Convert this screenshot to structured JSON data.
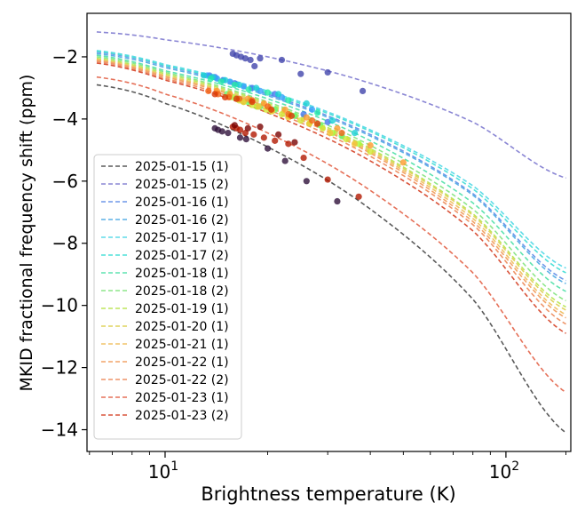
{
  "chart_data": {
    "type": "scatter",
    "title": "",
    "xlabel": "Brightness temperature (K)",
    "ylabel": "MKID fractional frequency shift (ppm)",
    "xscale": "log",
    "xlim": [
      5.9,
      155
    ],
    "ylim": [
      -14.7,
      -0.6
    ],
    "yticks": [
      -14,
      -12,
      -10,
      -8,
      -6,
      -4,
      -2
    ],
    "ytick_labels": [
      "−14",
      "−12",
      "−10",
      "−8",
      "−6",
      "−4",
      "−2"
    ],
    "xticks": [
      10,
      100
    ],
    "xtick_base": "10",
    "xtick_exponents": [
      "1",
      "2"
    ],
    "xminor_ticks": [
      6,
      7,
      8,
      9,
      20,
      30,
      40,
      50,
      60,
      70,
      80,
      90,
      150
    ],
    "legend_position": "lower-left",
    "fit_range": [
      6.3,
      150
    ],
    "series": [
      {
        "name": "2025-01-15 (1)",
        "color": "#30123b",
        "line_color": "#5a5a5a",
        "fit": [
          [
            6.3,
            -2.9
          ],
          [
            10,
            -3.5
          ],
          [
            20,
            -4.9
          ],
          [
            40,
            -6.9
          ],
          [
            80,
            -9.8
          ],
          [
            150,
            -14.1
          ]
        ],
        "points": [
          [
            14.0,
            -4.3
          ],
          [
            14.3,
            -4.35
          ],
          [
            14.7,
            -4.4
          ],
          [
            15.3,
            -4.45
          ],
          [
            16.6,
            -4.6
          ],
          [
            17.3,
            -4.65
          ],
          [
            20.0,
            -4.95
          ],
          [
            22.5,
            -5.35
          ],
          [
            26.0,
            -6.0
          ],
          [
            32.0,
            -6.65
          ]
        ]
      },
      {
        "name": "2025-01-15 (2)",
        "color": "#4145ab",
        "line_color": "#8a86d4",
        "fit": [
          [
            6.3,
            -1.2
          ],
          [
            10,
            -1.45
          ],
          [
            20,
            -2.0
          ],
          [
            40,
            -2.85
          ],
          [
            80,
            -4.1
          ],
          [
            150,
            -5.9
          ]
        ],
        "points": [
          [
            15.8,
            -1.9
          ],
          [
            16.2,
            -1.95
          ],
          [
            16.7,
            -2.0
          ],
          [
            17.2,
            -2.05
          ],
          [
            17.8,
            -2.1
          ],
          [
            18.3,
            -2.3
          ],
          [
            19.0,
            -2.05
          ],
          [
            22.0,
            -2.1
          ],
          [
            25.0,
            -2.55
          ],
          [
            30.0,
            -2.5
          ],
          [
            38.0,
            -3.1
          ]
        ]
      },
      {
        "name": "2025-01-16 (1)",
        "color": "#4675ed",
        "line_color": "#6e97e8",
        "fit": [
          [
            6.3,
            -1.85
          ],
          [
            10,
            -2.3
          ],
          [
            20,
            -3.2
          ],
          [
            40,
            -4.5
          ],
          [
            80,
            -6.4
          ],
          [
            150,
            -9.2
          ]
        ],
        "points": [
          [
            13.5,
            -2.6
          ],
          [
            14.0,
            -2.65
          ],
          [
            14.8,
            -2.75
          ],
          [
            16.0,
            -2.85
          ],
          [
            18.0,
            -3.0
          ],
          [
            21.0,
            -3.2
          ],
          [
            25.5,
            -3.85
          ],
          [
            30.0,
            -4.1
          ]
        ]
      },
      {
        "name": "2025-01-16 (2)",
        "color": "#39a2fc",
        "line_color": "#5cb1e6",
        "fit": [
          [
            6.3,
            -1.9
          ],
          [
            10,
            -2.35
          ],
          [
            20,
            -3.25
          ],
          [
            40,
            -4.55
          ],
          [
            80,
            -6.45
          ],
          [
            150,
            -9.3
          ]
        ],
        "points": [
          [
            13.3,
            -2.6
          ],
          [
            14.2,
            -2.7
          ],
          [
            15.5,
            -2.8
          ],
          [
            17.0,
            -2.95
          ],
          [
            19.0,
            -3.1
          ],
          [
            22.0,
            -3.3
          ],
          [
            27.0,
            -3.7
          ]
        ]
      },
      {
        "name": "2025-01-17 (1)",
        "color": "#1bcfd4",
        "line_color": "#5fdbe8",
        "fit": [
          [
            6.3,
            -1.8
          ],
          [
            10,
            -2.25
          ],
          [
            20,
            -3.1
          ],
          [
            40,
            -4.35
          ],
          [
            80,
            -6.15
          ],
          [
            150,
            -8.8
          ]
        ],
        "points": [
          [
            13.0,
            -2.6
          ],
          [
            13.8,
            -2.65
          ],
          [
            15.0,
            -2.75
          ],
          [
            16.5,
            -2.9
          ],
          [
            18.5,
            -3.0
          ],
          [
            21.5,
            -3.2
          ],
          [
            26.0,
            -3.5
          ],
          [
            31.0,
            -4.05
          ],
          [
            36.0,
            -4.45
          ]
        ]
      },
      {
        "name": "2025-01-17 (2)",
        "color": "#24eca6",
        "line_color": "#4ee0d8",
        "fit": [
          [
            6.3,
            -1.82
          ],
          [
            10,
            -2.28
          ],
          [
            20,
            -3.15
          ],
          [
            40,
            -4.4
          ],
          [
            80,
            -6.25
          ],
          [
            150,
            -8.95
          ]
        ],
        "points": [
          [
            13.6,
            -2.7
          ],
          [
            14.6,
            -2.8
          ],
          [
            16.0,
            -2.9
          ],
          [
            17.6,
            -3.05
          ],
          [
            20.0,
            -3.15
          ],
          [
            23.0,
            -3.4
          ],
          [
            28.0,
            -3.8
          ]
        ]
      },
      {
        "name": "2025-01-18 (1)",
        "color": "#61fc6c",
        "line_color": "#5fe3b0",
        "fit": [
          [
            6.3,
            -1.95
          ],
          [
            10,
            -2.45
          ],
          [
            20,
            -3.35
          ],
          [
            40,
            -4.7
          ],
          [
            80,
            -6.7
          ],
          [
            150,
            -9.55
          ]
        ],
        "points": [
          [
            15.2,
            -3.2
          ],
          [
            16.4,
            -3.35
          ],
          [
            17.5,
            -3.45
          ],
          [
            19.0,
            -3.6
          ],
          [
            21.0,
            -3.7
          ],
          [
            24.0,
            -3.9
          ],
          [
            28.5,
            -4.2
          ],
          [
            33.0,
            -4.55
          ]
        ]
      },
      {
        "name": "2025-01-18 (2)",
        "color": "#a4fc3b",
        "line_color": "#8ee68a",
        "fit": [
          [
            6.3,
            -2.0
          ],
          [
            10,
            -2.5
          ],
          [
            20,
            -3.45
          ],
          [
            40,
            -4.85
          ],
          [
            80,
            -6.9
          ],
          [
            150,
            -9.85
          ]
        ],
        "points": [
          [
            15.8,
            -3.3
          ],
          [
            17.0,
            -3.45
          ],
          [
            18.6,
            -3.6
          ],
          [
            20.5,
            -3.75
          ],
          [
            23.0,
            -3.9
          ],
          [
            26.5,
            -4.15
          ],
          [
            31.0,
            -4.45
          ],
          [
            37.0,
            -4.8
          ]
        ]
      },
      {
        "name": "2025-01-19 (1)",
        "color": "#d1e834",
        "line_color": "#bde65c",
        "fit": [
          [
            6.3,
            -2.05
          ],
          [
            10,
            -2.55
          ],
          [
            20,
            -3.5
          ],
          [
            40,
            -4.95
          ],
          [
            80,
            -7.05
          ],
          [
            150,
            -10.05
          ]
        ],
        "points": [
          [
            16.5,
            -3.4
          ],
          [
            18.0,
            -3.55
          ],
          [
            19.8,
            -3.7
          ],
          [
            22.0,
            -3.85
          ],
          [
            25.0,
            -4.05
          ],
          [
            29.0,
            -4.3
          ],
          [
            34.0,
            -4.65
          ],
          [
            40.0,
            -5.05
          ]
        ]
      },
      {
        "name": "2025-01-20 (1)",
        "color": "#f3c63a",
        "line_color": "#dfd35f",
        "fit": [
          [
            6.3,
            -2.08
          ],
          [
            10,
            -2.6
          ],
          [
            20,
            -3.55
          ],
          [
            40,
            -5.0
          ],
          [
            80,
            -7.1
          ],
          [
            150,
            -10.15
          ]
        ],
        "points": [
          [
            17.0,
            -3.45
          ],
          [
            18.8,
            -3.6
          ],
          [
            20.6,
            -3.75
          ],
          [
            23.0,
            -3.95
          ],
          [
            26.5,
            -4.15
          ],
          [
            30.5,
            -4.45
          ],
          [
            36.0,
            -4.8
          ]
        ]
      },
      {
        "name": "2025-01-21 (1)",
        "color": "#fe9b2d",
        "line_color": "#f0c36a",
        "fit": [
          [
            6.3,
            -2.1
          ],
          [
            10,
            -2.62
          ],
          [
            20,
            -3.6
          ],
          [
            40,
            -5.05
          ],
          [
            80,
            -7.2
          ],
          [
            150,
            -10.3
          ]
        ],
        "points": [
          [
            14.2,
            -3.1
          ],
          [
            15.5,
            -3.2
          ],
          [
            17.5,
            -3.35
          ],
          [
            19.5,
            -3.5
          ],
          [
            22.5,
            -3.7
          ],
          [
            26.0,
            -3.95
          ],
          [
            32.0,
            -4.3
          ],
          [
            40.0,
            -4.85
          ],
          [
            50.0,
            -5.4
          ]
        ]
      },
      {
        "name": "2025-01-22 (1)",
        "color": "#f36315",
        "line_color": "#f2a468",
        "fit": [
          [
            6.3,
            -2.12
          ],
          [
            10,
            -2.65
          ],
          [
            20,
            -3.62
          ],
          [
            40,
            -5.1
          ],
          [
            80,
            -7.3
          ],
          [
            150,
            -10.4
          ]
        ],
        "points": [
          [
            13.4,
            -3.1
          ],
          [
            14.3,
            -3.2
          ],
          [
            15.4,
            -3.3
          ],
          [
            16.5,
            -3.35
          ],
          [
            18.0,
            -3.4
          ],
          [
            20.0,
            -3.6
          ],
          [
            23.0,
            -3.85
          ],
          [
            27.0,
            -4.05
          ],
          [
            33.0,
            -4.45
          ]
        ]
      },
      {
        "name": "2025-01-22 (2)",
        "color": "#d93806",
        "line_color": "#ee9468",
        "fit": [
          [
            6.3,
            -2.15
          ],
          [
            10,
            -2.7
          ],
          [
            20,
            -3.7
          ],
          [
            40,
            -5.2
          ],
          [
            80,
            -7.4
          ],
          [
            150,
            -10.6
          ]
        ],
        "points": [
          [
            14.0,
            -3.2
          ],
          [
            15.0,
            -3.3
          ],
          [
            16.2,
            -3.35
          ],
          [
            18.0,
            -3.45
          ],
          [
            20.5,
            -3.7
          ],
          [
            23.5,
            -3.9
          ],
          [
            28.0,
            -4.15
          ]
        ]
      },
      {
        "name": "2025-01-23 (1)",
        "color": "#b11901",
        "line_color": "#e57058",
        "fit": [
          [
            6.3,
            -2.65
          ],
          [
            10,
            -3.2
          ],
          [
            20,
            -4.45
          ],
          [
            40,
            -6.3
          ],
          [
            80,
            -8.95
          ],
          [
            150,
            -12.8
          ]
        ],
        "points": [
          [
            15.8,
            -4.25
          ],
          [
            16.2,
            -4.3
          ],
          [
            16.6,
            -4.35
          ],
          [
            17.2,
            -4.45
          ],
          [
            18.2,
            -4.5
          ],
          [
            19.5,
            -4.6
          ],
          [
            21.0,
            -4.7
          ],
          [
            23.0,
            -4.8
          ],
          [
            25.5,
            -5.25
          ],
          [
            30.0,
            -5.95
          ],
          [
            37.0,
            -6.5
          ]
        ]
      },
      {
        "name": "2025-01-23 (2)",
        "color": "#7a0403",
        "line_color": "#d9533a",
        "fit": [
          [
            6.3,
            -2.2
          ],
          [
            10,
            -2.75
          ],
          [
            20,
            -3.8
          ],
          [
            40,
            -5.35
          ],
          [
            80,
            -7.6
          ],
          [
            150,
            -10.9
          ]
        ],
        "points": [
          [
            16.0,
            -4.2
          ],
          [
            17.5,
            -4.3
          ],
          [
            19.0,
            -4.25
          ],
          [
            21.5,
            -4.5
          ],
          [
            24.0,
            -4.75
          ]
        ]
      }
    ]
  }
}
